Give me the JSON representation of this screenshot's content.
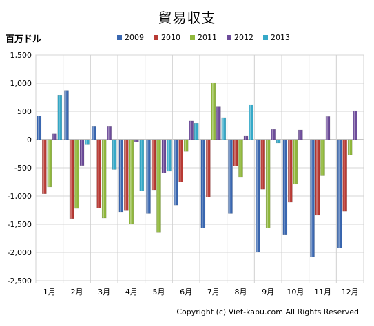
{
  "chart_data": {
    "type": "bar",
    "title": "貿易収支",
    "ylabel": "百万ドル",
    "xlabel": "",
    "categories": [
      "1月",
      "2月",
      "3月",
      "4月",
      "5月",
      "6月",
      "7月",
      "8月",
      "9月",
      "10月",
      "11月",
      "12月"
    ],
    "ylim": [
      -2500,
      1500
    ],
    "yticks": [
      "1,500",
      "1,000",
      "500",
      "0",
      "-500",
      "-1,000",
      "-1,500",
      "-2,000",
      "-2,500"
    ],
    "ytick_values": [
      1500,
      1000,
      500,
      0,
      -500,
      -1000,
      -1500,
      -2000,
      -2500
    ],
    "legend_position": "top",
    "grid": true,
    "series": [
      {
        "name": "2009",
        "color": "#3a67b0",
        "values": [
          420,
          870,
          240,
          -1280,
          -1310,
          -1160,
          -1570,
          -1310,
          -1990,
          -1680,
          -2080,
          -1920
        ]
      },
      {
        "name": "2010",
        "color": "#b83a34",
        "values": [
          -960,
          -1400,
          -1210,
          -1260,
          -890,
          -750,
          -1020,
          -470,
          -880,
          -1110,
          -1340,
          -1270
        ]
      },
      {
        "name": "2011",
        "color": "#90b83c",
        "values": [
          -840,
          -1220,
          -1390,
          -1490,
          -1650,
          -210,
          1010,
          -670,
          -1570,
          -790,
          -640,
          -270
        ]
      },
      {
        "name": "2012",
        "color": "#6d4c9a",
        "values": [
          100,
          -460,
          240,
          -40,
          -590,
          330,
          590,
          60,
          180,
          170,
          410,
          510
        ]
      },
      {
        "name": "2013",
        "color": "#36a9c8",
        "values": [
          790,
          -90,
          -530,
          -910,
          -560,
          290,
          390,
          620,
          -60,
          null,
          null,
          null
        ]
      }
    ]
  },
  "copyright": "Copyright (c) Viet-kabu.com All Rights Reserved"
}
